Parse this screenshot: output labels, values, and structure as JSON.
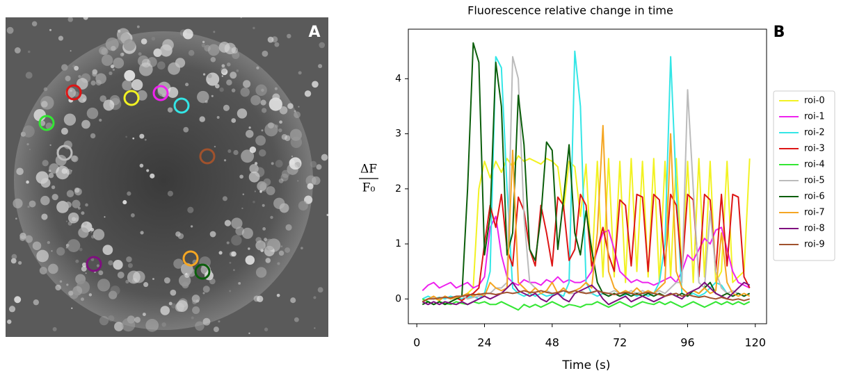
{
  "image_panel": {
    "label": "A"
  },
  "chart_data": {
    "type": "line",
    "title": "Fluorescence relative change in time",
    "panel_label": "B",
    "xlabel": "Time (s)",
    "ylabel_numerator": "ΔF",
    "ylabel_denominator": "F₀",
    "xlim": [
      -3,
      124
    ],
    "ylim": [
      -0.45,
      4.9
    ],
    "xticks": [
      0,
      24,
      48,
      72,
      96,
      120
    ],
    "yticks": [
      0,
      1,
      2,
      3,
      4
    ],
    "grid": false,
    "legend": "outside-right",
    "x": [
      2,
      4,
      6,
      8,
      10,
      12,
      14,
      16,
      18,
      20,
      22,
      24,
      26,
      28,
      30,
      32,
      34,
      36,
      38,
      40,
      42,
      44,
      46,
      48,
      50,
      52,
      54,
      56,
      58,
      60,
      62,
      64,
      66,
      68,
      70,
      72,
      74,
      76,
      78,
      80,
      82,
      84,
      86,
      88,
      90,
      92,
      94,
      96,
      98,
      100,
      102,
      104,
      106,
      108,
      110,
      112,
      114,
      116,
      118
    ],
    "series": [
      {
        "name": "roi-0",
        "color": "#f2f222",
        "values": [
          -0.05,
          0,
          0.02,
          -0.03,
          0.05,
          0,
          0.03,
          0.05,
          0.1,
          0.2,
          2.0,
          2.5,
          2.2,
          2.5,
          2.3,
          2.55,
          2.4,
          2.6,
          2.5,
          2.55,
          2.5,
          2.45,
          2.55,
          2.5,
          2.4,
          1.6,
          2.5,
          2.4,
          1.5,
          2.45,
          0.5,
          2.5,
          0.4,
          2.55,
          0.4,
          2.5,
          0.3,
          2.55,
          0.5,
          2.5,
          0.4,
          2.55,
          0.3,
          2.5,
          0.4,
          2.55,
          0.5,
          2.5,
          0.3,
          2.55,
          0.4,
          2.5,
          0.3,
          0.5,
          2.5,
          0.3,
          0.4,
          0.5,
          2.55
        ]
      },
      {
        "name": "roi-1",
        "color": "#ee22ee",
        "values": [
          0.15,
          0.25,
          0.3,
          0.2,
          0.25,
          0.3,
          0.2,
          0.25,
          0.3,
          0.2,
          0.25,
          0.4,
          1.3,
          1.5,
          0.8,
          0.4,
          0.3,
          0.25,
          0.35,
          0.3,
          0.3,
          0.25,
          0.35,
          0.3,
          0.4,
          0.3,
          0.35,
          0.3,
          0.3,
          0.35,
          0.5,
          0.9,
          1.2,
          1.25,
          0.9,
          0.5,
          0.4,
          0.3,
          0.35,
          0.3,
          0.3,
          0.25,
          0.3,
          0.35,
          0.4,
          0.3,
          0.5,
          0.8,
          0.7,
          0.9,
          1.1,
          1.0,
          1.25,
          1.3,
          0.9,
          0.5,
          0.3,
          0.25,
          0.2
        ]
      },
      {
        "name": "roi-2",
        "color": "#33e6e6",
        "values": [
          0,
          0.05,
          0,
          0.03,
          0,
          0.05,
          0.02,
          0,
          0.03,
          0.05,
          0,
          0.1,
          0.5,
          4.4,
          4.2,
          2.0,
          0.2,
          0.1,
          0.05,
          0.1,
          0.05,
          0.1,
          0.05,
          0.08,
          0.1,
          0.05,
          0.3,
          4.5,
          3.5,
          0.3,
          0.1,
          0.05,
          0.1,
          0.05,
          0.1,
          0.05,
          0.08,
          0.1,
          0.05,
          0.1,
          0.05,
          0.1,
          0.3,
          1.0,
          4.4,
          2.0,
          0.1,
          0.05,
          0.1,
          0.05,
          0.1,
          0.2,
          0.3,
          0.25,
          0.1,
          0.05,
          0.1,
          0.05,
          0.1
        ]
      },
      {
        "name": "roi-3",
        "color": "#dd1515",
        "values": [
          -0.05,
          0,
          0.03,
          -0.02,
          0.05,
          0,
          0.02,
          -0.03,
          0.05,
          0.1,
          0.2,
          1.0,
          1.7,
          1.3,
          1.9,
          0.9,
          0.6,
          1.85,
          1.6,
          0.9,
          0.6,
          1.7,
          1.2,
          0.6,
          1.85,
          1.7,
          0.7,
          0.9,
          1.9,
          1.7,
          0.6,
          0.9,
          1.3,
          0.8,
          0.5,
          1.8,
          1.7,
          0.6,
          1.9,
          1.85,
          0.5,
          1.9,
          1.8,
          0.6,
          1.9,
          1.7,
          0.5,
          1.9,
          1.8,
          0.4,
          1.9,
          1.8,
          0.5,
          1.9,
          0.6,
          1.9,
          1.85,
          0.4,
          0.2
        ]
      },
      {
        "name": "roi-4",
        "color": "#33e633",
        "values": [
          0,
          -0.05,
          -0.1,
          -0.05,
          -0.08,
          -0.1,
          -0.05,
          -0.08,
          -0.1,
          -0.05,
          -0.08,
          -0.05,
          -0.1,
          -0.1,
          -0.05,
          -0.1,
          -0.15,
          -0.2,
          -0.1,
          -0.15,
          -0.1,
          -0.15,
          -0.1,
          -0.05,
          -0.1,
          -0.15,
          -0.1,
          -0.12,
          -0.15,
          -0.1,
          -0.1,
          -0.05,
          -0.1,
          -0.15,
          -0.1,
          -0.05,
          -0.1,
          -0.15,
          -0.1,
          -0.05,
          -0.08,
          -0.1,
          -0.05,
          -0.1,
          -0.05,
          -0.1,
          -0.15,
          -0.1,
          -0.05,
          -0.1,
          -0.15,
          -0.1,
          -0.05,
          -0.1,
          -0.05,
          -0.1,
          -0.05,
          -0.1,
          -0.05
        ]
      },
      {
        "name": "roi-5",
        "color": "#bbbbbb",
        "values": [
          -0.05,
          0,
          0.02,
          0,
          0.03,
          0,
          0.02,
          0.05,
          0,
          0.03,
          0.05,
          0.1,
          0.1,
          0.2,
          0.2,
          0.3,
          4.4,
          4.0,
          1.5,
          0.3,
          0.2,
          0.1,
          0.15,
          0.1,
          0.1,
          0.15,
          0.1,
          0.1,
          0.15,
          0.1,
          0.1,
          0.15,
          0.1,
          0.1,
          0.15,
          0.1,
          0.1,
          0.15,
          0.1,
          0.15,
          0.1,
          0.1,
          0.15,
          0.1,
          0.2,
          0.3,
          0.3,
          3.8,
          2.0,
          0.3,
          0.2,
          1.6,
          0.5,
          0.2,
          0.1,
          0.15,
          0.1,
          0.05,
          0.1
        ]
      },
      {
        "name": "roi-6",
        "color": "#0b5e0b",
        "values": [
          -0.1,
          -0.05,
          -0.1,
          -0.05,
          -0.1,
          -0.05,
          0,
          0.05,
          2.0,
          4.65,
          4.3,
          0.8,
          1.5,
          4.3,
          3.5,
          0.8,
          1.2,
          3.7,
          2.8,
          0.9,
          0.7,
          1.5,
          2.85,
          2.7,
          0.9,
          1.8,
          2.8,
          1.2,
          0.8,
          1.6,
          0.9,
          0.3,
          0.1,
          0.05,
          0.1,
          0.05,
          0.1,
          0.05,
          0.1,
          0.05,
          0.1,
          0.05,
          0.1,
          0.05,
          0.1,
          0.05,
          0.1,
          0.05,
          0.15,
          0.1,
          0.2,
          0.3,
          0.1,
          0.05,
          0.1,
          0.05,
          0.1,
          0.05,
          0.1
        ]
      },
      {
        "name": "roi-7",
        "color": "#f5a623",
        "values": [
          -0.05,
          0,
          0.05,
          -0.02,
          0.05,
          0,
          0.03,
          0.05,
          0.1,
          0.05,
          0.1,
          0.05,
          0.3,
          0.2,
          0.15,
          0.2,
          2.7,
          0.3,
          0.2,
          0.1,
          0.2,
          0.1,
          0.15,
          0.3,
          0.1,
          0.2,
          0.1,
          0.15,
          0.2,
          0.3,
          0.2,
          1.2,
          3.15,
          0.5,
          0.2,
          0.1,
          0.15,
          0.1,
          0.2,
          0.1,
          0.15,
          0.1,
          0.2,
          0.3,
          3.0,
          0.5,
          0.2,
          0.1,
          0.15,
          0.1,
          0.2,
          0.1,
          0.15,
          1.2,
          0.3,
          0.1,
          0.05,
          0.1,
          0.05
        ]
      },
      {
        "name": "roi-8",
        "color": "#7f0f7f",
        "values": [
          -0.05,
          -0.1,
          -0.05,
          -0.1,
          -0.05,
          -0.08,
          -0.1,
          -0.05,
          -0.1,
          -0.05,
          0,
          0.05,
          0,
          0.05,
          0.1,
          0.2,
          0.3,
          0.15,
          0.1,
          0.05,
          0.1,
          0,
          -0.05,
          0.05,
          0.1,
          0,
          -0.05,
          0.1,
          0.15,
          0.2,
          0.25,
          0.15,
          0,
          -0.1,
          -0.05,
          0,
          0.05,
          -0.05,
          0,
          0.05,
          0,
          -0.05,
          0,
          0.05,
          0.1,
          0.05,
          0,
          0.1,
          0.15,
          0.2,
          0.3,
          0.2,
          0.1,
          0.05,
          0,
          0.1,
          0.2,
          0.3,
          0.25
        ]
      },
      {
        "name": "roi-9",
        "color": "#a0522d",
        "values": [
          -0.05,
          0,
          0,
          0.02,
          0.03,
          0.02,
          0.05,
          0.05,
          0.07,
          0.08,
          0.08,
          0.1,
          0.1,
          0.08,
          0.1,
          0.12,
          0.1,
          0.12,
          0.15,
          0.12,
          0.12,
          0.15,
          0.12,
          0.1,
          0.12,
          0.15,
          0.12,
          0.15,
          0.12,
          0.1,
          0.12,
          0.15,
          0.12,
          0.1,
          0.08,
          0.1,
          0.12,
          0.1,
          0.08,
          0.1,
          0.12,
          0.1,
          0.08,
          0.05,
          0.08,
          0.1,
          0.05,
          0.08,
          0.05,
          0.03,
          0.05,
          0.02,
          0,
          0.03,
          0,
          -0.02,
          0,
          -0.03,
          0
        ]
      }
    ]
  }
}
